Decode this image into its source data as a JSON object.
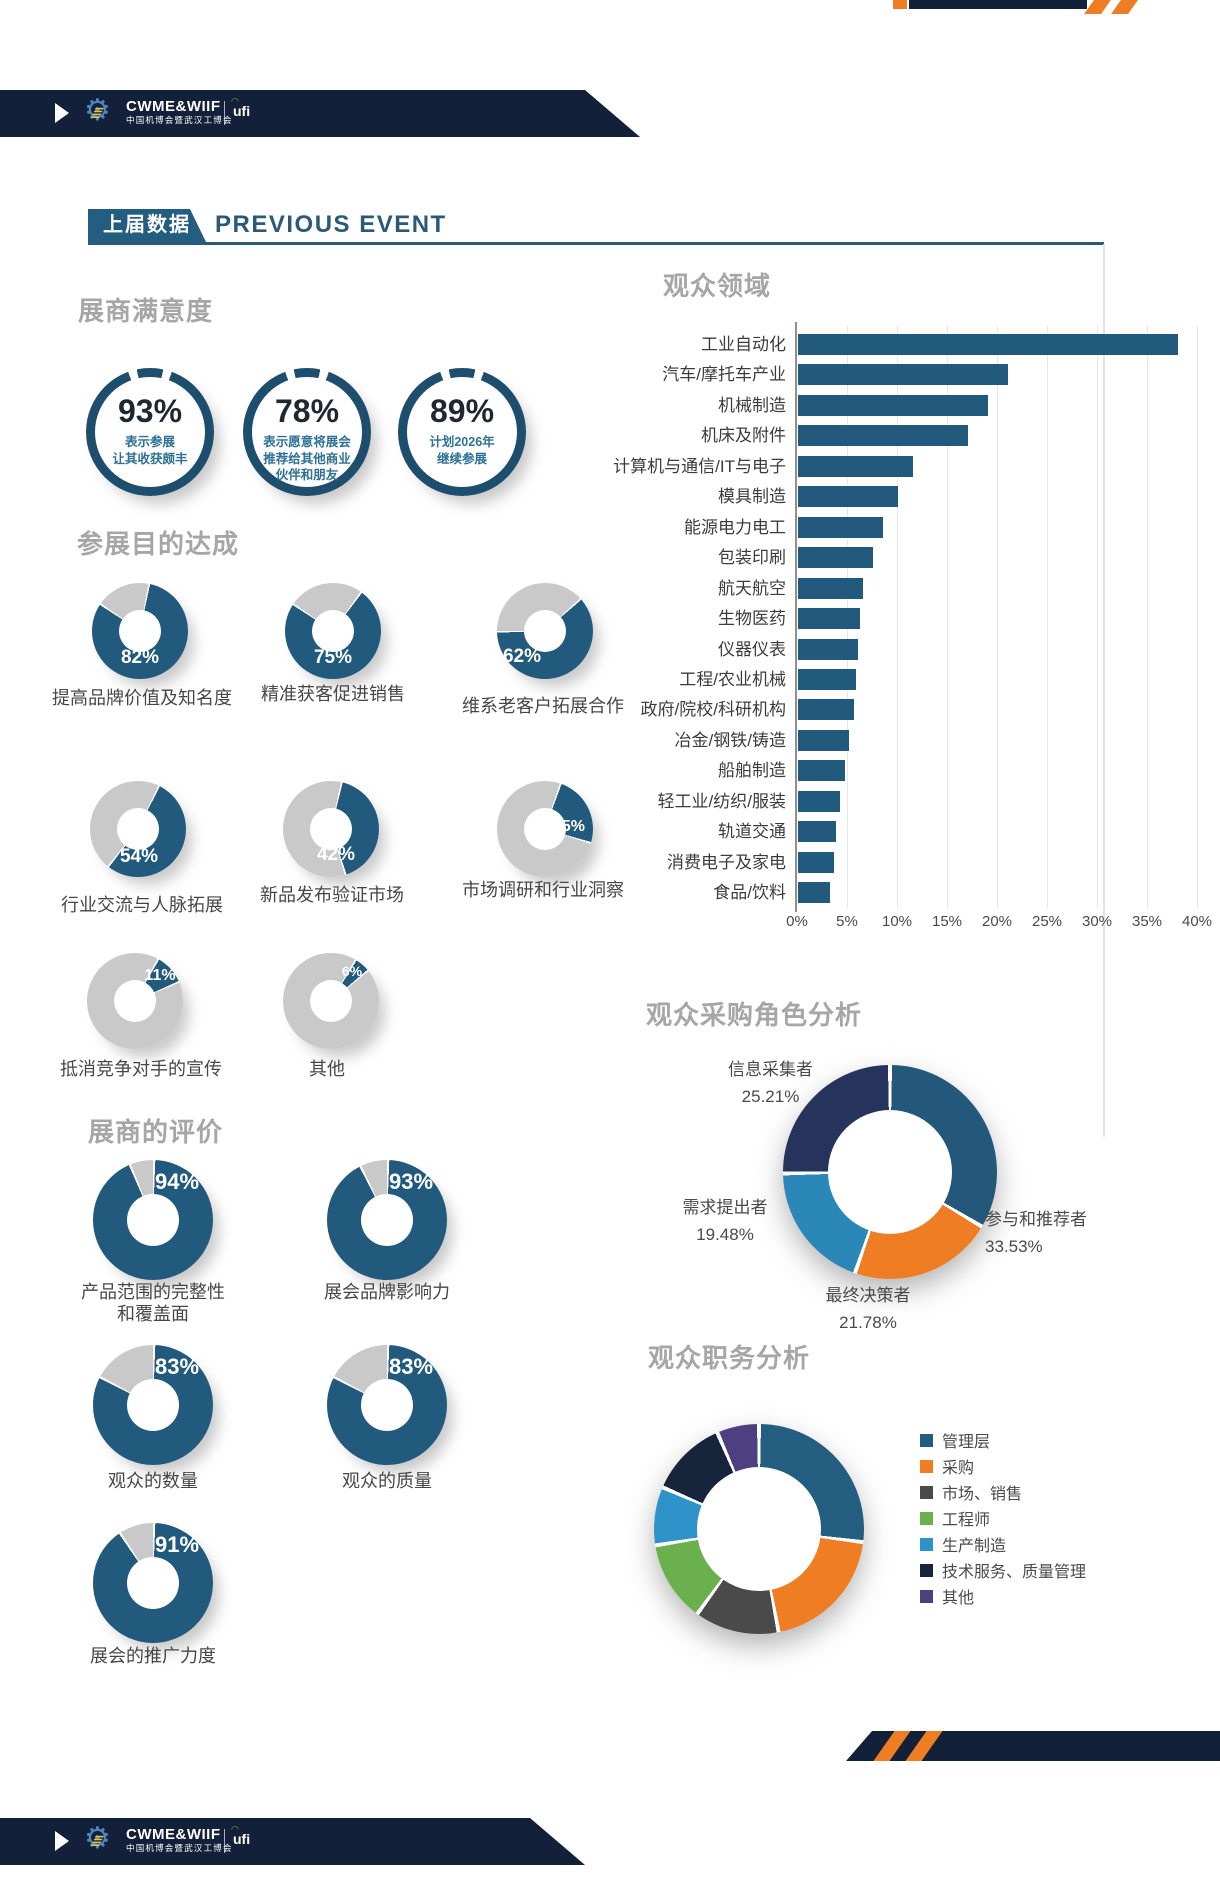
{
  "brand": {
    "name": "CWME&WIIF",
    "sub": "中国机博会暨武汉工博会",
    "partner": "ufi"
  },
  "banner": {
    "zh": "上届数据",
    "en": "PREVIOUS EVENT"
  },
  "colors": {
    "navy": "#13203a",
    "primary_blue": "#215a7c",
    "orange": "#ee7d23",
    "rest_gray": "#c9c9c9",
    "heading_gray": "#a6a6a6",
    "ring_blue": "#1e4e6d"
  },
  "chart_data": [
    {
      "id": "satisfaction",
      "type": "kpi-ring",
      "title": "展商满意度",
      "items": [
        {
          "value": 93,
          "unit": "%",
          "desc": [
            "表示参展",
            "让其收获颇丰"
          ]
        },
        {
          "value": 78,
          "unit": "%",
          "desc": [
            "表示愿意将展会",
            "推荐给其他商业",
            "伙伴和朋友"
          ]
        },
        {
          "value": 89,
          "unit": "%",
          "desc": [
            "计划2026年",
            "继续参展"
          ]
        }
      ]
    },
    {
      "id": "purpose",
      "type": "donut",
      "title": "参展目的达成",
      "unit": "%",
      "color": "#215a7c",
      "rest_color": "#c9c9c9",
      "items": [
        {
          "label_lines": [
            "提高品牌价值及知名度"
          ],
          "value": 82,
          "start_deg": 10
        },
        {
          "label_lines": [
            "精准获客促进销售"
          ],
          "value": 75,
          "start_deg": 35
        },
        {
          "label_lines": [
            "维系老客户拓展合作"
          ],
          "value": 62,
          "start_deg": 47
        },
        {
          "label_lines": [
            "行业交流与人脉拓展"
          ],
          "value": 54,
          "start_deg": 25
        },
        {
          "label_lines": [
            "新品发布验证市场"
          ],
          "value": 42,
          "start_deg": 12
        },
        {
          "label_lines": [
            "市场调研和行业洞察"
          ],
          "value": 25,
          "start_deg": 18
        },
        {
          "label_lines": [
            "抵消竞争对手的宣传"
          ],
          "value": 11,
          "start_deg": 28
        },
        {
          "label_lines": [
            "其他"
          ],
          "value": 6,
          "start_deg": 30
        }
      ]
    },
    {
      "id": "evaluation",
      "type": "donut",
      "title": "展商的评价",
      "unit": "%",
      "color": "#215a7c",
      "rest_color": "#c9c9c9",
      "items": [
        {
          "label_lines": [
            "产品范围的完整性",
            "和覆盖面"
          ],
          "value": 94,
          "start_deg": 0
        },
        {
          "label_lines": [
            "展会品牌影响力"
          ],
          "value": 93,
          "start_deg": 0
        },
        {
          "label_lines": [
            "观众的数量"
          ],
          "value": 83,
          "start_deg": 0
        },
        {
          "label_lines": [
            "观众的质量"
          ],
          "value": 83,
          "start_deg": 0
        },
        {
          "label_lines": [
            "展会的推广力度"
          ],
          "value": 91,
          "start_deg": 0
        }
      ]
    },
    {
      "id": "visitor_fields",
      "type": "bar",
      "title": "观众领域",
      "xlim": [
        0,
        40
      ],
      "unit": "%",
      "grid": true,
      "ticks": [
        "0%",
        "5%",
        "10%",
        "15%",
        "20%",
        "25%",
        "30%",
        "35%",
        "40%"
      ],
      "categories": [
        "工业自动化",
        "汽车/摩托车产业",
        "机械制造",
        "机床及附件",
        "计算机与通信/IT与电子",
        "模具制造",
        "能源电力电工",
        "包装印刷",
        "航天航空",
        "生物医药",
        "仪器仪表",
        "工程/农业机械",
        "政府/院校/科研机构",
        "冶金/钢铁/铸造",
        "船舶制造",
        "轻工业/纺织/服装",
        "轨道交通",
        "消费电子及家电",
        "食品/饮料"
      ],
      "values": [
        38,
        21,
        19,
        17,
        11.5,
        10,
        8.5,
        7.5,
        6.5,
        6.2,
        6,
        5.8,
        5.6,
        5.1,
        4.7,
        4.2,
        3.8,
        3.6,
        3.2
      ]
    },
    {
      "id": "buyer_role",
      "type": "donut",
      "title": "观众采购角色分析",
      "slices": [
        {
          "label": "参与和推荐者",
          "value": 33.53,
          "value_label": "33.53%",
          "color": "#24587a"
        },
        {
          "label": "最终决策者",
          "value": 21.78,
          "value_label": "21.78%",
          "color": "#ee7d23"
        },
        {
          "label": "需求提出者",
          "value": 19.48,
          "value_label": "19.48%",
          "color": "#2b87b8"
        },
        {
          "label": "信息采集者",
          "value": 25.21,
          "value_label": "25.21%",
          "color": "#26335c"
        }
      ]
    },
    {
      "id": "job_title",
      "type": "donut",
      "title": "观众职务分析",
      "legend_position": "right",
      "slices": [
        {
          "label": "管理层",
          "value": 27,
          "color": "#235d80"
        },
        {
          "label": "采购",
          "value": 20,
          "color": "#ee7d23"
        },
        {
          "label": "市场、销售",
          "value": 13,
          "color": "#4a4a4a"
        },
        {
          "label": "工程师",
          "value": 12.5,
          "color": "#6ab04c"
        },
        {
          "label": "生产制造",
          "value": 9,
          "color": "#2e93c9"
        },
        {
          "label": "技术服务、质量管理",
          "value": 12,
          "color": "#16243c"
        },
        {
          "label": "其他",
          "value": 6.5,
          "color": "#4c4080"
        }
      ]
    }
  ]
}
